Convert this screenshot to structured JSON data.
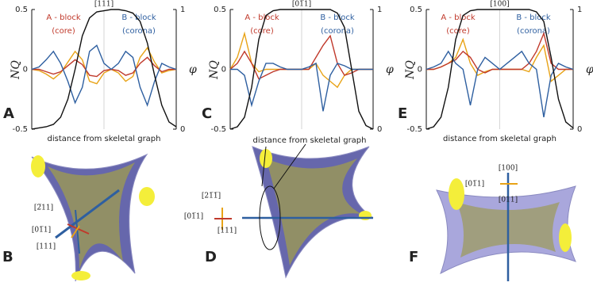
{
  "chart_data": [
    {
      "type": "line",
      "panel_label": "A",
      "title": "[111]",
      "ylabel": "NQ",
      "y2label": "φ",
      "xlabel": "distance from skeletal graph",
      "legend_labels": [
        {
          "text": "A - block",
          "detail": "(core)",
          "color": "#c0392b"
        },
        {
          "text": "B - block",
          "detail": "(corona)",
          "color": "#2e5fa0"
        }
      ],
      "x": [
        0,
        1,
        2,
        3,
        4,
        5,
        6,
        7,
        8,
        9,
        10,
        11,
        12,
        13,
        14,
        15,
        16,
        17,
        18,
        19,
        20
      ],
      "xlim": [
        0,
        20
      ],
      "ylim": [
        -0.5,
        0.5
      ],
      "yticks": [
        -0.5,
        0,
        0.5
      ],
      "y2lim": [
        0,
        1
      ],
      "y2ticks": [
        0,
        1
      ],
      "series": [
        {
          "color": "#e8a317",
          "values": [
            0,
            -0.01,
            -0.04,
            -0.08,
            -0.03,
            0.06,
            0.15,
            0.08,
            -0.1,
            -0.12,
            -0.03,
            0,
            -0.03,
            -0.1,
            -0.06,
            0.1,
            0.18,
            0.06,
            -0.03,
            -0.01,
            0
          ]
        },
        {
          "color": "#c0392b",
          "values": [
            0,
            0,
            -0.02,
            -0.04,
            -0.02,
            0.03,
            0.08,
            0.04,
            -0.05,
            -0.06,
            -0.01,
            0,
            -0.01,
            -0.05,
            -0.03,
            0.05,
            0.1,
            0.03,
            -0.02,
            0,
            0
          ]
        },
        {
          "color": "#2e5fa0",
          "values": [
            0,
            0.02,
            0.08,
            0.15,
            0.05,
            -0.1,
            -0.28,
            -0.15,
            0.15,
            0.2,
            0.05,
            0,
            0.05,
            0.15,
            0.1,
            -0.15,
            -0.3,
            -0.1,
            0.05,
            0.02,
            0
          ]
        },
        {
          "color": "#111111",
          "axis": "y2",
          "values": [
            0,
            0.01,
            0.02,
            0.04,
            0.1,
            0.25,
            0.5,
            0.78,
            0.93,
            0.98,
            0.99,
            1,
            1,
            0.99,
            0.97,
            0.9,
            0.72,
            0.45,
            0.2,
            0.06,
            0.02
          ]
        }
      ]
    },
    {
      "type": "line",
      "panel_label": "C",
      "title": "[01̅1]",
      "ylabel": "NQ",
      "y2label": "φ",
      "legend_labels": [
        {
          "text": "A - block",
          "detail": "(core)",
          "color": "#c0392b"
        },
        {
          "text": "B - block",
          "detail": "(corona)",
          "color": "#2e5fa0"
        }
      ],
      "x": [
        0,
        1,
        2,
        3,
        4,
        5,
        6,
        7,
        8,
        9,
        10,
        11,
        12,
        13,
        14,
        15,
        16,
        17,
        18,
        19,
        20
      ],
      "xlim": [
        0,
        20
      ],
      "ylim": [
        -0.5,
        0.5
      ],
      "yticks": [
        -0.5,
        0,
        0.5
      ],
      "y2lim": [
        0,
        1
      ],
      "y2ticks": [
        0,
        1
      ],
      "series": [
        {
          "color": "#e8a317",
          "values": [
            0,
            0.1,
            0.3,
            0.05,
            -0.02,
            0,
            0,
            0,
            0,
            0,
            0,
            0,
            0.05,
            -0.05,
            -0.1,
            -0.15,
            -0.05,
            0,
            0,
            0,
            0
          ]
        },
        {
          "color": "#c0392b",
          "values": [
            0,
            0.05,
            0.15,
            0.05,
            -0.08,
            -0.05,
            -0.02,
            0,
            0,
            0,
            0,
            0,
            0.1,
            0.2,
            0.28,
            0.05,
            -0.05,
            -0.03,
            0,
            0,
            0
          ]
        },
        {
          "color": "#2e5fa0",
          "values": [
            0,
            0,
            -0.05,
            -0.3,
            -0.1,
            0.05,
            0.05,
            0.02,
            0,
            0,
            0,
            0.02,
            0.05,
            -0.35,
            -0.05,
            0.05,
            0.03,
            0,
            0,
            0,
            0
          ]
        },
        {
          "color": "#111111",
          "axis": "y2",
          "values": [
            0,
            0.02,
            0.1,
            0.35,
            0.75,
            0.95,
            0.99,
            1,
            1,
            1,
            1,
            1,
            1,
            1,
            1,
            0.97,
            0.85,
            0.5,
            0.15,
            0.03,
            0
          ]
        }
      ]
    },
    {
      "type": "line",
      "panel_label": "E",
      "title": "[100]",
      "ylabel": "NQ",
      "y2label": "φ",
      "xlabel": "distance from skeletal graph",
      "legend_labels": [
        {
          "text": "A - block",
          "detail": "(core)",
          "color": "#c0392b"
        },
        {
          "text": "B - block",
          "detail": "(corona)",
          "color": "#2e5fa0"
        }
      ],
      "x": [
        0,
        1,
        2,
        3,
        4,
        5,
        6,
        7,
        8,
        9,
        10,
        11,
        12,
        13,
        14,
        15,
        16,
        17,
        18,
        19,
        20
      ],
      "xlim": [
        0,
        20
      ],
      "ylim": [
        -0.5,
        0.5
      ],
      "yticks": [
        -0.5,
        0,
        0.5
      ],
      "y2lim": [
        0,
        1
      ],
      "y2ticks": [
        0,
        1
      ],
      "series": [
        {
          "color": "#e8a317",
          "values": [
            0,
            0,
            0.02,
            0.05,
            0.1,
            0.25,
            0.05,
            -0.05,
            -0.02,
            0,
            0,
            0,
            0,
            0,
            -0.02,
            0.1,
            0.2,
            -0.1,
            -0.05,
            0,
            0
          ]
        },
        {
          "color": "#c0392b",
          "values": [
            0,
            0,
            0.02,
            0.05,
            0.08,
            0.15,
            0.1,
            0,
            -0.03,
            0,
            0,
            0,
            0,
            0,
            0.05,
            0.15,
            0.3,
            0.05,
            0,
            0,
            0
          ]
        },
        {
          "color": "#2e5fa0",
          "values": [
            0,
            0.02,
            0.05,
            0.15,
            0.05,
            0,
            -0.3,
            0,
            0.1,
            0.05,
            0,
            0.05,
            0.1,
            0.15,
            0.05,
            0,
            -0.4,
            -0.05,
            0.05,
            0.02,
            0
          ]
        },
        {
          "color": "#111111",
          "axis": "y2",
          "values": [
            0,
            0.02,
            0.1,
            0.35,
            0.75,
            0.95,
            0.99,
            1,
            1,
            1,
            1,
            1,
            1,
            1,
            1,
            0.98,
            0.9,
            0.6,
            0.25,
            0.06,
            0.01
          ]
        }
      ]
    }
  ],
  "panels": [
    {
      "label": "B",
      "directions": [
        "[2̅11]",
        "[01̅1]",
        "[111]"
      ]
    },
    {
      "label": "D",
      "directions": [
        "[21̅1̅]",
        "[01̅1]",
        "[111]"
      ],
      "annotation": "distance from skeletal graph"
    },
    {
      "label": "F",
      "directions": [
        "[100]",
        "[01̅1]",
        "[011]"
      ]
    }
  ]
}
